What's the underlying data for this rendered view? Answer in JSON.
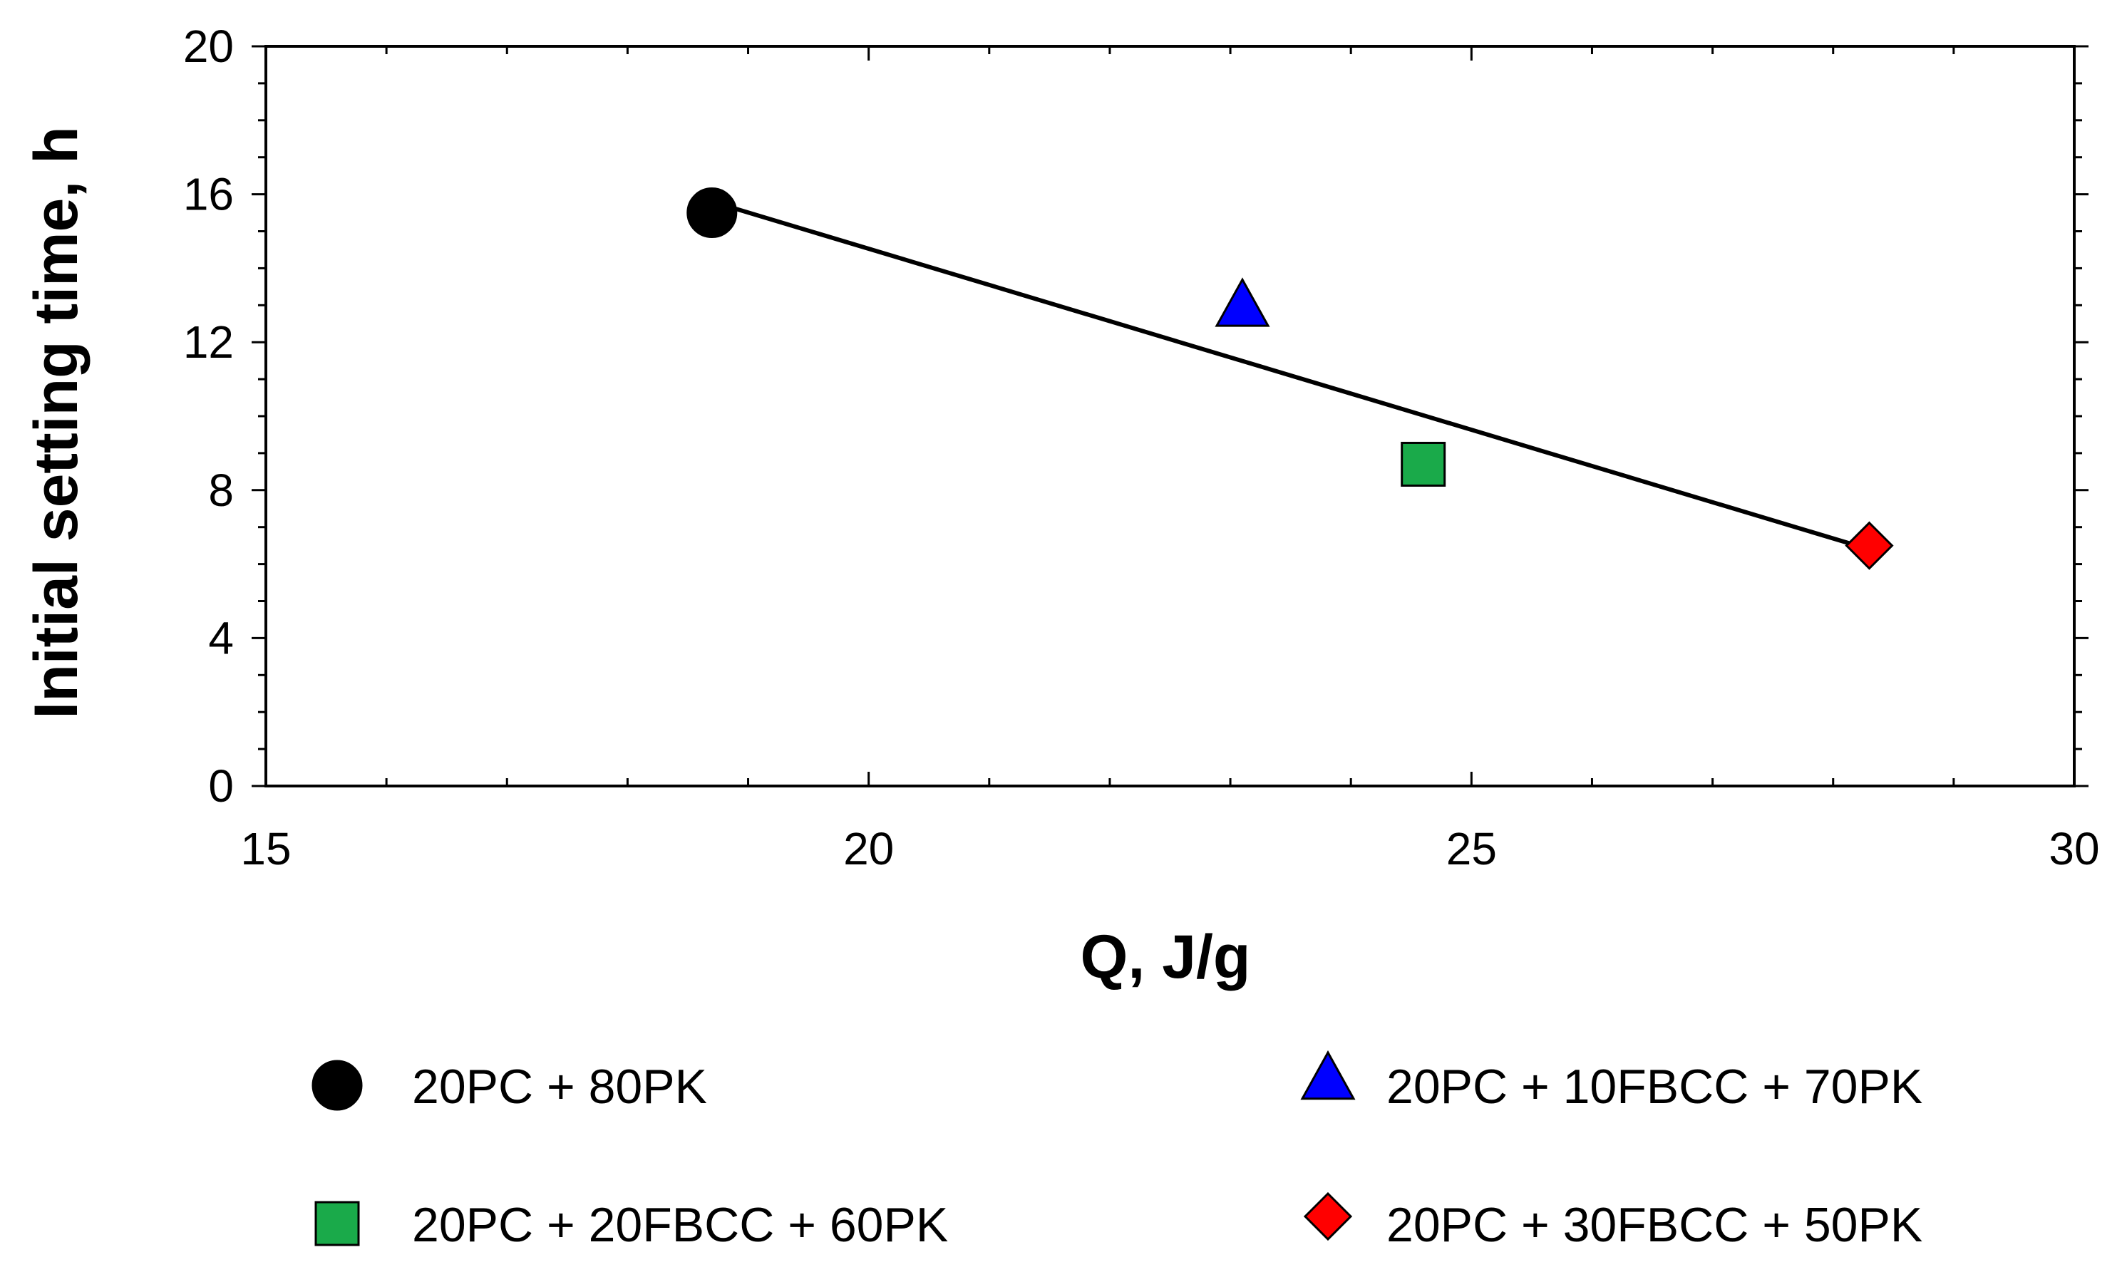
{
  "chart_data": {
    "type": "scatter",
    "title": "",
    "xlabel": "Q, J/g",
    "ylabel": "Initial setting time, h",
    "xlim": [
      15,
      30
    ],
    "ylim": [
      0,
      20
    ],
    "x_major_ticks": [
      15,
      20,
      25,
      30
    ],
    "x_tick_labels": [
      "15",
      "20",
      "25",
      "30"
    ],
    "x_minor_step": 1,
    "y_major_ticks": [
      0,
      4,
      8,
      12,
      16,
      20
    ],
    "y_tick_labels": [
      "0",
      "4",
      "8",
      "12",
      "16",
      "20"
    ],
    "y_minor_step": 1,
    "grid": false,
    "legend_position": "bottom",
    "series": [
      {
        "name": "20PC + 80PK",
        "marker": "circle",
        "color": "#000000",
        "x": 18.7,
        "y": 15.5
      },
      {
        "name": "20PC + 10FBCC + 70PK",
        "marker": "triangle",
        "color": "#0000ff",
        "x": 23.1,
        "y": 13.0
      },
      {
        "name": "20PC + 20FBCC + 60PK",
        "marker": "square",
        "color": "#1aaa4a",
        "x": 24.6,
        "y": 8.7
      },
      {
        "name": "20PC + 30FBCC + 50PK",
        "marker": "diamond",
        "color": "#ff0000",
        "x": 28.3,
        "y": 6.5
      }
    ],
    "trendline": {
      "type": "linear",
      "color": "#000000",
      "x": [
        18.7,
        28.3
      ],
      "y": [
        15.8,
        6.4
      ]
    }
  }
}
